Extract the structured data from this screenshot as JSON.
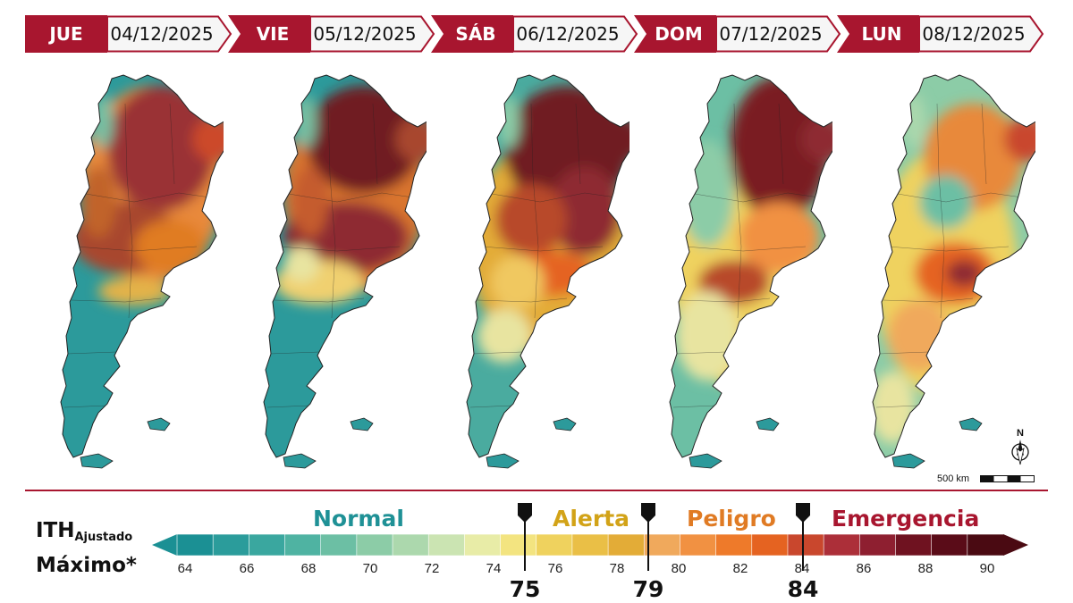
{
  "days": [
    {
      "name": "JUE",
      "date": "04/12/2025"
    },
    {
      "name": "VIE",
      "date": "05/12/2025"
    },
    {
      "name": "SÁB",
      "date": "06/12/2025"
    },
    {
      "name": "DOM",
      "date": "07/12/2025"
    },
    {
      "name": "LUN",
      "date": "08/12/2025"
    }
  ],
  "legend": {
    "title_main": "ITH",
    "title_sub": "Ajustado",
    "title_line2": "Máximo*",
    "categories": [
      {
        "label": "Normal",
        "color": "#1f9196"
      },
      {
        "label": "Alerta",
        "color": "#d2a318"
      },
      {
        "label": "Peligro",
        "color": "#e07b24"
      },
      {
        "label": "Emergencia",
        "color": "#a8162f"
      }
    ],
    "ticks": [
      "64",
      "66",
      "68",
      "70",
      "72",
      "74",
      "76",
      "78",
      "80",
      "82",
      "84",
      "86",
      "88",
      "90"
    ],
    "thresholds": [
      "75",
      "79",
      "84"
    ],
    "colors": [
      "#1b9094",
      "#2b9c9b",
      "#3aa79f",
      "#4fb3a2",
      "#6cbfa4",
      "#8ccca7",
      "#acd8ad",
      "#cbe4b2",
      "#e8eca7",
      "#f3e480",
      "#efd25e",
      "#eabf46",
      "#e3ac37",
      "#f0a95c",
      "#f19142",
      "#ee7a2a",
      "#e56321",
      "#c9472d",
      "#ac2f39",
      "#8e1f30",
      "#6f1220",
      "#5a0c18",
      "#4a0a12"
    ],
    "scale_text": "500 km",
    "north_label": "N"
  }
}
